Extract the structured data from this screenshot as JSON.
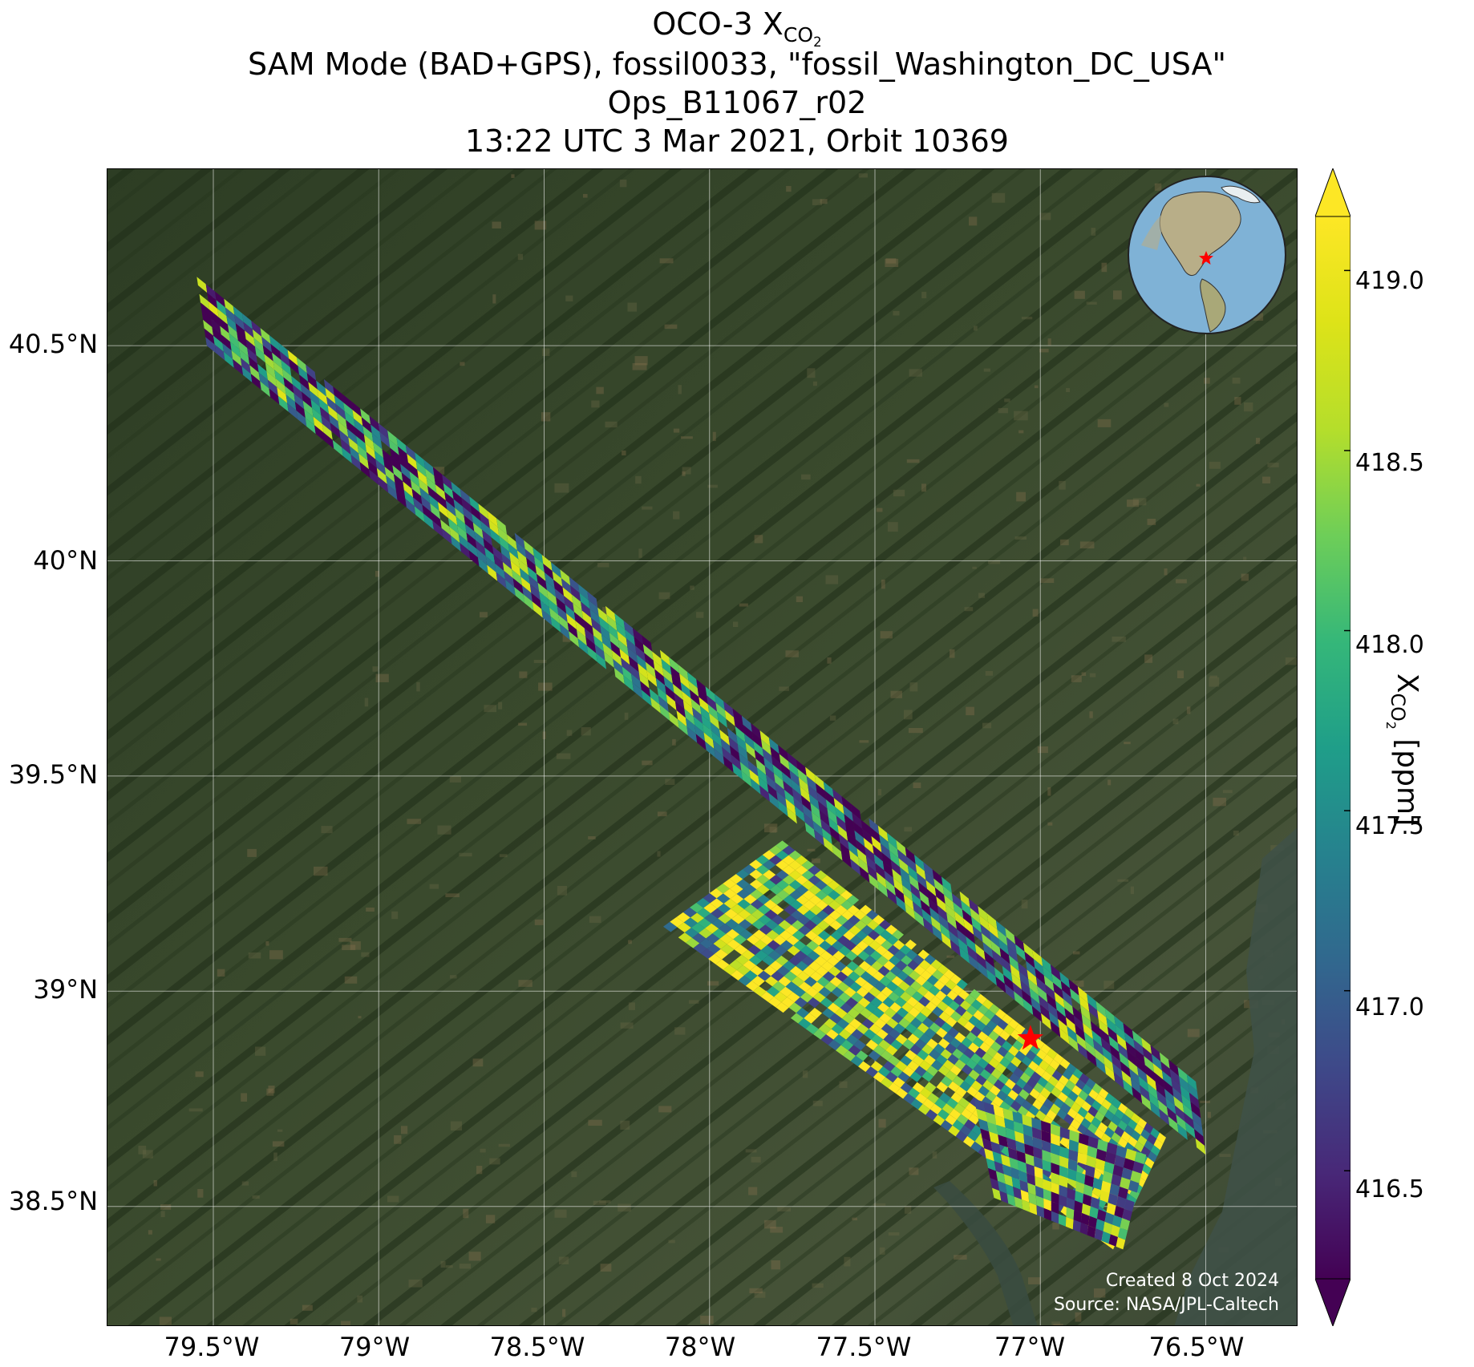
{
  "title": {
    "line1_prefix": "OCO-3 X",
    "line1_sub": "CO",
    "line1_sub2": "2",
    "line2": "SAM Mode (BAD+GPS), fossil0033, \"fossil_Washington_DC_USA\"",
    "line3": "Ops_B11067_r02",
    "line4": "13:22 UTC 3 Mar 2021, Orbit 10369"
  },
  "axes": {
    "y_ticks": [
      "40.5°N",
      "40°N",
      "39.5°N",
      "39°N",
      "38.5°N"
    ],
    "y_tick_values": [
      40.5,
      40.0,
      39.5,
      39.0,
      38.5
    ],
    "x_ticks": [
      "79.5°W",
      "79°W",
      "78.5°W",
      "78°W",
      "77.5°W",
      "77°W",
      "76.5°W"
    ],
    "x_tick_values": [
      -79.5,
      -79.0,
      -78.5,
      -78.0,
      -77.5,
      -77.0,
      -76.5
    ],
    "lon_range": [
      -79.82,
      -76.22
    ],
    "lat_range": [
      38.22,
      40.91
    ]
  },
  "colorbar": {
    "label_prefix": "X",
    "label_sub": "CO",
    "label_sub2": "2",
    "label_suffix": " [ppm]",
    "ticks": [
      "419.0",
      "418.5",
      "418.0",
      "417.5",
      "417.0",
      "416.5"
    ],
    "tick_values": [
      419.0,
      418.5,
      418.0,
      417.5,
      417.0,
      416.5
    ],
    "range": [
      416.2,
      419.15
    ],
    "colormap": "viridis",
    "extend": "both"
  },
  "target": {
    "name": "fossil_Washington_DC_USA",
    "lon": -77.03,
    "lat": 38.89,
    "marker": "star",
    "color": "#ff0000"
  },
  "inset_globe": {
    "description_icon": "globe-icon",
    "marker_color": "#ff0000"
  },
  "credits": {
    "created": "Created 8 Oct 2024",
    "source": "Source: NASA/JPL-Caltech"
  },
  "basemap": {
    "style": "satellite imagery",
    "background_color": "#35442b",
    "gridlines": true
  },
  "swaths": [
    {
      "name": "northern swath",
      "corners_lonlat": [
        [
          -79.55,
          40.66
        ],
        [
          -76.53,
          38.79
        ],
        [
          -76.5,
          38.62
        ],
        [
          -79.52,
          40.5
        ]
      ],
      "value_mean": 417.3
    },
    {
      "name": "southern swath",
      "corners_lonlat": [
        [
          -78.14,
          39.15
        ],
        [
          -77.78,
          39.35
        ],
        [
          -76.62,
          38.66
        ],
        [
          -76.78,
          38.4
        ],
        [
          -77.53,
          38.84
        ]
      ],
      "value_mean": 418.3
    }
  ]
}
